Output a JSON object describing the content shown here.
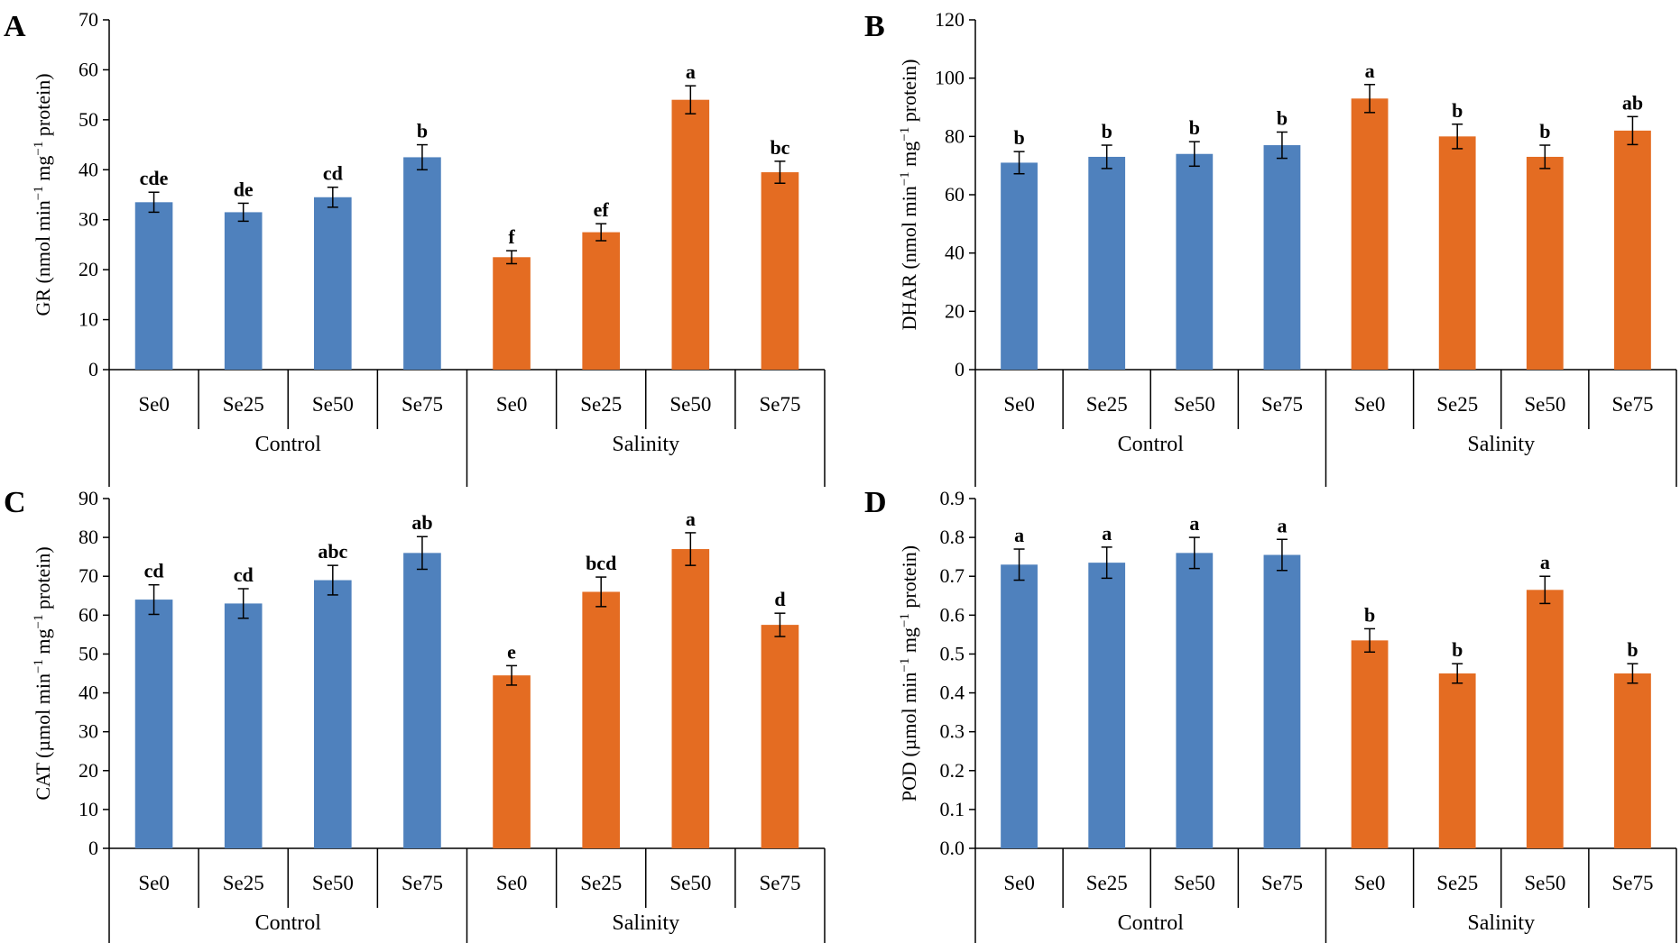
{
  "colors": {
    "control": "#4f81bd",
    "salinity": "#e46c22"
  },
  "chart_data": [
    {
      "panel": "A",
      "type": "bar",
      "ylabel": "GR (nmol min",
      "ylabel_unit_mid": " mg",
      "ylabel_tail": " protein)",
      "ylabel_exp": "−1",
      "ylim": [
        0,
        70
      ],
      "yticks": [
        "0",
        "10",
        "20",
        "30",
        "40",
        "50",
        "60",
        "70"
      ],
      "groups": [
        {
          "name": "Control",
          "categories": [
            "Se0",
            "Se25",
            "Se50",
            "Se75"
          ],
          "values": [
            33.5,
            31.5,
            34.5,
            42.5
          ],
          "errors": [
            2.0,
            1.8,
            2.0,
            2.5
          ],
          "letters": [
            "cde",
            "de",
            "cd",
            "b"
          ]
        },
        {
          "name": "Salinity",
          "categories": [
            "Se0",
            "Se25",
            "Se50",
            "Se75"
          ],
          "values": [
            22.5,
            27.5,
            54,
            39.5
          ],
          "errors": [
            1.3,
            1.7,
            2.8,
            2.2
          ],
          "letters": [
            "f",
            "ef",
            "a",
            "bc"
          ]
        }
      ]
    },
    {
      "panel": "B",
      "type": "bar",
      "ylabel": "DHAR (nmol min",
      "ylabel_unit_mid": " mg",
      "ylabel_tail": " protein)",
      "ylabel_exp": "−1",
      "ylim": [
        0,
        120
      ],
      "yticks": [
        "0",
        "20",
        "40",
        "60",
        "80",
        "100",
        "120"
      ],
      "groups": [
        {
          "name": "Control",
          "categories": [
            "Se0",
            "Se25",
            "Se50",
            "Se75"
          ],
          "values": [
            71,
            73,
            74,
            77
          ],
          "errors": [
            3.8,
            4.0,
            4.2,
            4.5
          ],
          "letters": [
            "b",
            "b",
            "b",
            "b"
          ]
        },
        {
          "name": "Salinity",
          "categories": [
            "Se0",
            "Se25",
            "Se50",
            "Se75"
          ],
          "values": [
            93,
            80,
            73,
            82
          ],
          "errors": [
            4.8,
            4.2,
            4.0,
            4.8
          ],
          "letters": [
            "a",
            "b",
            "b",
            "ab"
          ]
        }
      ]
    },
    {
      "panel": "C",
      "type": "bar",
      "ylabel": "CAT (µmol min",
      "ylabel_unit_mid": " mg",
      "ylabel_tail": " protein)",
      "ylabel_exp": "−1",
      "ylim": [
        0,
        90
      ],
      "yticks": [
        "0",
        "10",
        "20",
        "30",
        "40",
        "50",
        "60",
        "70",
        "80",
        "90"
      ],
      "groups": [
        {
          "name": "Control",
          "categories": [
            "Se0",
            "Se25",
            "Se50",
            "Se75"
          ],
          "values": [
            64,
            63,
            69,
            76
          ],
          "errors": [
            3.8,
            3.8,
            3.8,
            4.2
          ],
          "letters": [
            "cd",
            "cd",
            "abc",
            "ab"
          ]
        },
        {
          "name": "Salinity",
          "categories": [
            "Se0",
            "Se25",
            "Se50",
            "Se75"
          ],
          "values": [
            44.5,
            66,
            77,
            57.5
          ],
          "errors": [
            2.5,
            3.8,
            4.2,
            3.0
          ],
          "letters": [
            "e",
            "bcd",
            "a",
            "d"
          ]
        }
      ]
    },
    {
      "panel": "D",
      "type": "bar",
      "ylabel": "POD (µmol min",
      "ylabel_unit_mid": " mg",
      "ylabel_tail": " protein)",
      "ylabel_exp": "−1",
      "ylim": [
        0,
        0.9
      ],
      "yticks": [
        "0.0",
        "0.1",
        "0.2",
        "0.3",
        "0.4",
        "0.5",
        "0.6",
        "0.7",
        "0.8",
        "0.9"
      ],
      "groups": [
        {
          "name": "Control",
          "categories": [
            "Se0",
            "Se25",
            "Se50",
            "Se75"
          ],
          "values": [
            0.73,
            0.735,
            0.76,
            0.755
          ],
          "errors": [
            0.04,
            0.04,
            0.04,
            0.04
          ],
          "letters": [
            "a",
            "a",
            "a",
            "a"
          ]
        },
        {
          "name": "Salinity",
          "categories": [
            "Se0",
            "Se25",
            "Se50",
            "Se75"
          ],
          "values": [
            0.535,
            0.45,
            0.665,
            0.45
          ],
          "errors": [
            0.03,
            0.025,
            0.035,
            0.025
          ],
          "letters": [
            "b",
            "b",
            "a",
            "b"
          ]
        }
      ]
    }
  ]
}
